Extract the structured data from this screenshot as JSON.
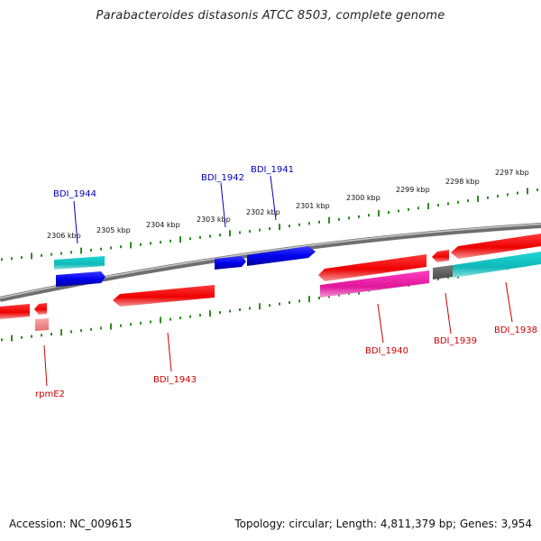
{
  "header": {
    "title": "Parabacteroides distasonis ATCC 8503, complete genome"
  },
  "footer": {
    "accession": "Accession: NC_009615",
    "genome_stats": "Topology: circular; Length: 4,811,379 bp; Genes: 3,954"
  },
  "colors": {
    "backbone": "#8c8c8c",
    "tick": "#2e8b22",
    "forward_cds": "#0000ee",
    "reverse_cds": "#ee0000",
    "rna_forward": "#16c3c3",
    "rna_reverse": "#ee1fa5",
    "pseudo": "#666666",
    "rrna_marker": "#f08080",
    "label_blue": "#0000bb",
    "label_red": "#cc0000"
  },
  "scale_labels": [
    "2306 kbp",
    "2305 kbp",
    "2304 kbp",
    "2303 kbp",
    "2302 kbp",
    "2301 kbp",
    "2300 kbp",
    "2299 kbp",
    "2298 kbp",
    "2297 kbp"
  ],
  "gene_labels": {
    "bdi_1944": "BDI_1944",
    "bdi_1942": "BDI_1942",
    "bdi_1941": "BDI_1941",
    "rpme2": "rpmE2",
    "bdi_1943": "BDI_1943",
    "bdi_1940": "BDI_1940",
    "bdi_1939": "BDI_1939",
    "bdi_1938": "BDI_1938"
  }
}
